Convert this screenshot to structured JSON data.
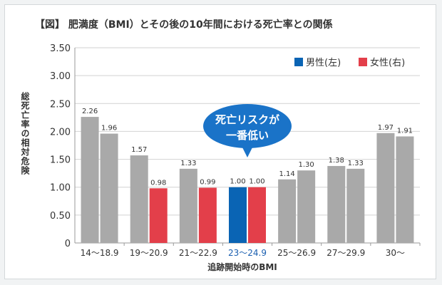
{
  "chart_data": {
    "type": "bar",
    "title": "【図】 肥満度（BMI）とその後の10年間における死亡率との関係",
    "ylabel": "総死亡率の相対危険",
    "xlabel": "追跡開始時のBMI",
    "ylim": [
      0,
      3.5
    ],
    "y_ticks": [
      "3.50",
      "3.00",
      "2.50",
      "2.00",
      "1.50",
      "1.00",
      "0.50",
      "0"
    ],
    "y_tick_values": [
      3.5,
      3.0,
      2.5,
      2.0,
      1.5,
      1.0,
      0.5,
      0
    ],
    "grid": true,
    "legend_position": "top-right",
    "categories": [
      "14～18.9",
      "19～20.9",
      "21～22.9",
      "23～24.9",
      "25～26.9",
      "27～29.9",
      "30～"
    ],
    "highlight_category": "23～24.9",
    "series": [
      {
        "name": "男性(左)",
        "values": [
          2.26,
          1.57,
          1.33,
          1.0,
          1.14,
          1.38,
          1.97
        ]
      },
      {
        "name": "女性(右)",
        "values": [
          1.96,
          0.98,
          0.99,
          1.0,
          1.3,
          1.33,
          1.91
        ]
      }
    ],
    "value_labels": [
      [
        "2.26",
        "1.57",
        "1.33",
        "1.00",
        "1.14",
        "1.38",
        "1.97"
      ],
      [
        "1.96",
        "0.98",
        "0.99",
        "1.00",
        "1.30",
        "1.33",
        "1.91"
      ]
    ],
    "highlighted_series": [
      "男性(左)",
      "女性(右)"
    ],
    "annotation": {
      "lines": [
        "死亡リスクが",
        "一番低い"
      ]
    },
    "colors": {
      "male": "#0a64b4",
      "female": "#e33f4a",
      "other_bars": "#a9a9a9",
      "callout": "#1a73c8",
      "highlight_text": "#1a5fb0",
      "grid": "#d2d2d2",
      "text": "#333333"
    }
  }
}
